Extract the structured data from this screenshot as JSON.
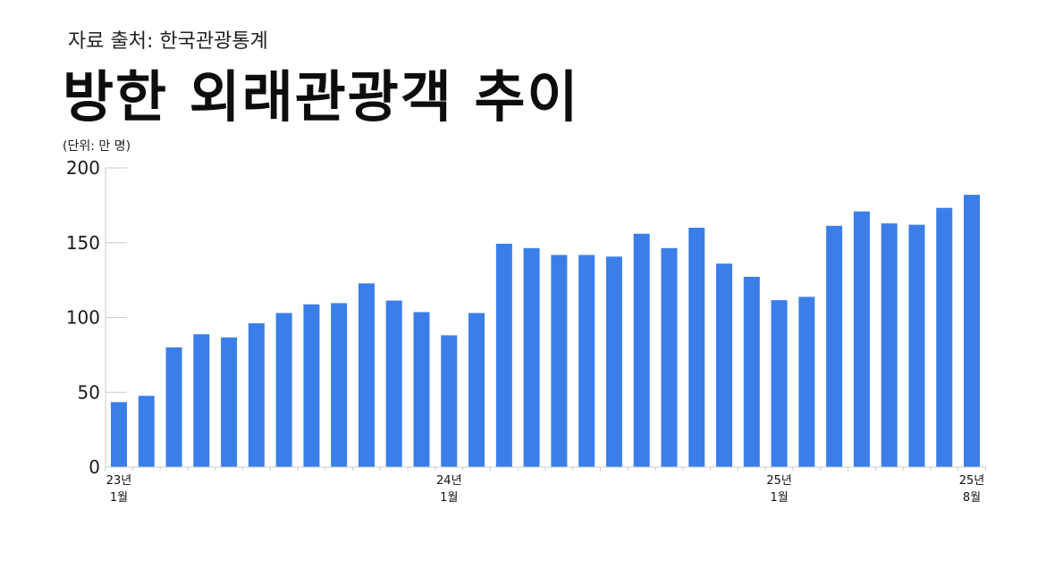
{
  "source": "자료 출처: 한국관광통계",
  "title": "방한 외래관광객 추이",
  "unit": "(단위: 만 명)",
  "colors": {
    "bar": "#3b7ee9",
    "axis": "#cccccc",
    "text": "#111111"
  },
  "chart_data": {
    "type": "bar",
    "title": "방한 외래관광객 추이",
    "ylabel": "(단위: 만 명)",
    "ylim": [
      0,
      200
    ],
    "yticks": [
      0,
      50,
      100,
      150,
      200
    ],
    "grid": false,
    "x_tick_labels": [
      {
        "index": 0,
        "year": "23년",
        "month": "1월"
      },
      {
        "index": 12,
        "year": "24년",
        "month": "1월"
      },
      {
        "index": 24,
        "year": "25년",
        "month": "1월"
      },
      {
        "index": 31,
        "year": "25년",
        "month": "8월"
      }
    ],
    "categories": [
      "23년 1월",
      "23년 2월",
      "23년 3월",
      "23년 4월",
      "23년 5월",
      "23년 6월",
      "23년 7월",
      "23년 8월",
      "23년 9월",
      "23년 10월",
      "23년 11월",
      "23년 12월",
      "24년 1월",
      "24년 2월",
      "24년 3월",
      "24년 4월",
      "24년 5월",
      "24년 6월",
      "24년 7월",
      "24년 8월",
      "24년 9월",
      "24년 10월",
      "24년 11월",
      "24년 12월",
      "25년 1월",
      "25년 2월",
      "25년 3월",
      "25년 4월",
      "25년 5월",
      "25년 6월",
      "25년 7월",
      "25년 8월"
    ],
    "values": [
      43.4,
      47.6,
      80.0,
      88.8,
      86.7,
      96.1,
      103.0,
      108.8,
      109.6,
      122.8,
      111.3,
      103.6,
      88.1,
      103.0,
      149.3,
      146.4,
      141.8,
      141.8,
      140.7,
      156.0,
      146.4,
      160.0,
      136.0,
      127.2,
      111.6,
      113.8,
      161.3,
      170.9,
      162.9,
      162.0,
      173.3,
      182.0
    ]
  }
}
